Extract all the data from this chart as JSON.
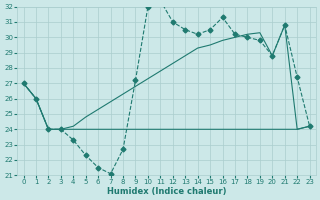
{
  "xlabel": "Humidex (Indice chaleur)",
  "bg_color": "#cce8e8",
  "line_color": "#1f7a70",
  "grid_color": "#aacece",
  "xlim_min": -0.5,
  "xlim_max": 23.5,
  "ylim_min": 21,
  "ylim_max": 32,
  "yticks": [
    21,
    22,
    23,
    24,
    25,
    26,
    27,
    28,
    29,
    30,
    31,
    32
  ],
  "xticks": [
    0,
    1,
    2,
    3,
    4,
    5,
    6,
    7,
    8,
    9,
    10,
    11,
    12,
    13,
    14,
    15,
    16,
    17,
    18,
    19,
    20,
    21,
    22,
    23
  ],
  "curve1_x": [
    0,
    1,
    2,
    3,
    4,
    5,
    6,
    7,
    8,
    9,
    10,
    11,
    12,
    13,
    14,
    15,
    16,
    17,
    18,
    19,
    20,
    21,
    22,
    23
  ],
  "curve1_y": [
    27.0,
    26.0,
    24.0,
    24.0,
    23.3,
    22.3,
    21.5,
    21.1,
    22.7,
    27.2,
    32.0,
    32.4,
    31.0,
    30.5,
    30.2,
    30.5,
    31.3,
    30.2,
    30.0,
    29.8,
    28.8,
    30.8,
    27.4,
    24.2
  ],
  "curve2_x": [
    0,
    1,
    2,
    3,
    4,
    5,
    6,
    7,
    8,
    9,
    10,
    11,
    12,
    13,
    14,
    15,
    16,
    17,
    18,
    19,
    20,
    21,
    22,
    23
  ],
  "curve2_y": [
    27.0,
    26.0,
    24.0,
    24.0,
    24.0,
    24.0,
    24.0,
    24.0,
    24.0,
    24.0,
    24.0,
    24.0,
    24.0,
    24.0,
    24.0,
    24.0,
    24.0,
    24.0,
    24.0,
    24.0,
    24.0,
    24.0,
    24.0,
    24.2
  ],
  "curve3_x": [
    0,
    1,
    2,
    3,
    4,
    5,
    6,
    7,
    8,
    9,
    10,
    11,
    12,
    13,
    14,
    15,
    16,
    17,
    18,
    19,
    20,
    21,
    22,
    23
  ],
  "curve3_y": [
    27.0,
    26.0,
    24.0,
    24.0,
    24.2,
    24.8,
    25.3,
    25.8,
    26.3,
    26.8,
    27.3,
    27.8,
    28.3,
    28.8,
    29.3,
    29.5,
    29.8,
    30.0,
    30.2,
    30.3,
    28.8,
    30.8,
    24.0,
    24.2
  ],
  "markersize": 2.5,
  "linewidth": 0.8,
  "tick_labelsize": 5,
  "xlabel_fontsize": 6
}
